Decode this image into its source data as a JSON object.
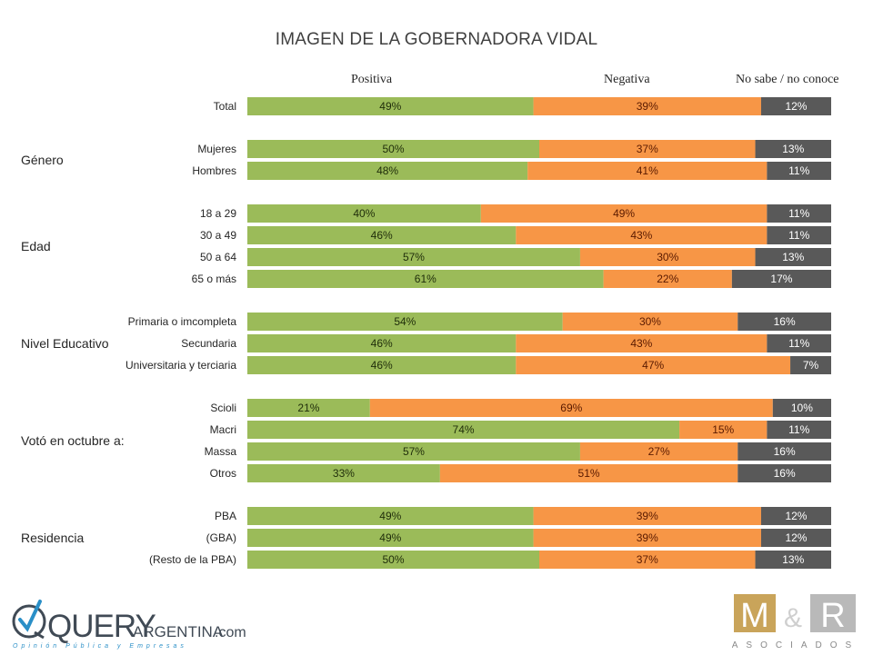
{
  "chart_data": {
    "type": "bar",
    "orientation": "horizontal",
    "stacked": "100%",
    "title": "IMAGEN DE LA GOBERNADORA VIDAL",
    "xlabel": "",
    "ylabel": "",
    "xlim": [
      0,
      100
    ],
    "grid": false,
    "legend": [
      "Positiva",
      "Negativa",
      "No sabe / no conoce"
    ],
    "legend_position": "top",
    "colors": {
      "Positiva": "#9bbb59",
      "Negativa": "#f79646",
      "No sabe / no conoce": "#595959"
    },
    "groups": [
      {
        "name": "",
        "rows": [
          {
            "label": "Total",
            "positiva": 49,
            "negativa": 39,
            "ns_nc": 12
          }
        ]
      },
      {
        "name": "Género",
        "rows": [
          {
            "label": "Mujeres",
            "positiva": 50,
            "negativa": 37,
            "ns_nc": 13
          },
          {
            "label": "Hombres",
            "positiva": 48,
            "negativa": 41,
            "ns_nc": 11
          }
        ]
      },
      {
        "name": "Edad",
        "rows": [
          {
            "label": "18 a 29",
            "positiva": 40,
            "negativa": 49,
            "ns_nc": 11
          },
          {
            "label": "30 a 49",
            "positiva": 46,
            "negativa": 43,
            "ns_nc": 11
          },
          {
            "label": "50 a 64",
            "positiva": 57,
            "negativa": 30,
            "ns_nc": 13
          },
          {
            "label": "65 o más",
            "positiva": 61,
            "negativa": 22,
            "ns_nc": 17
          }
        ]
      },
      {
        "name": "Nivel Educativo",
        "rows": [
          {
            "label": "Primaria o imcompleta",
            "positiva": 54,
            "negativa": 30,
            "ns_nc": 16
          },
          {
            "label": "Secundaria",
            "positiva": 46,
            "negativa": 43,
            "ns_nc": 11
          },
          {
            "label": "Universitaria y terciaria",
            "positiva": 46,
            "negativa": 47,
            "ns_nc": 7
          }
        ]
      },
      {
        "name": "Votó en octubre a:",
        "rows": [
          {
            "label": "Scioli",
            "positiva": 21,
            "negativa": 69,
            "ns_nc": 10
          },
          {
            "label": "Macri",
            "positiva": 74,
            "negativa": 15,
            "ns_nc": 11
          },
          {
            "label": "Massa",
            "positiva": 57,
            "negativa": 27,
            "ns_nc": 16
          },
          {
            "label": "Otros",
            "positiva": 33,
            "negativa": 51,
            "ns_nc": 16
          }
        ]
      },
      {
        "name": "Residencia",
        "rows": [
          {
            "label": "PBA",
            "positiva": 49,
            "negativa": 39,
            "ns_nc": 12
          },
          {
            "label": "(GBA)",
            "positiva": 49,
            "negativa": 39,
            "ns_nc": 12
          },
          {
            "label": "(Resto de la PBA)",
            "positiva": 50,
            "negativa": 37,
            "ns_nc": 13
          }
        ]
      }
    ]
  },
  "legend_headers": {
    "positiva": "Positiva",
    "negativa": "Negativa",
    "ns_nc": "No sabe / no conoce"
  },
  "logos": {
    "left": {
      "main": "QUERY",
      "suffix": "ARGENTINA",
      "domain": ".com",
      "tagline": "Opinión   Pública   y   Empresas"
    },
    "right": {
      "m": "M",
      "amp": "&",
      "r": "R",
      "sub": "ASOCIADOS"
    }
  }
}
